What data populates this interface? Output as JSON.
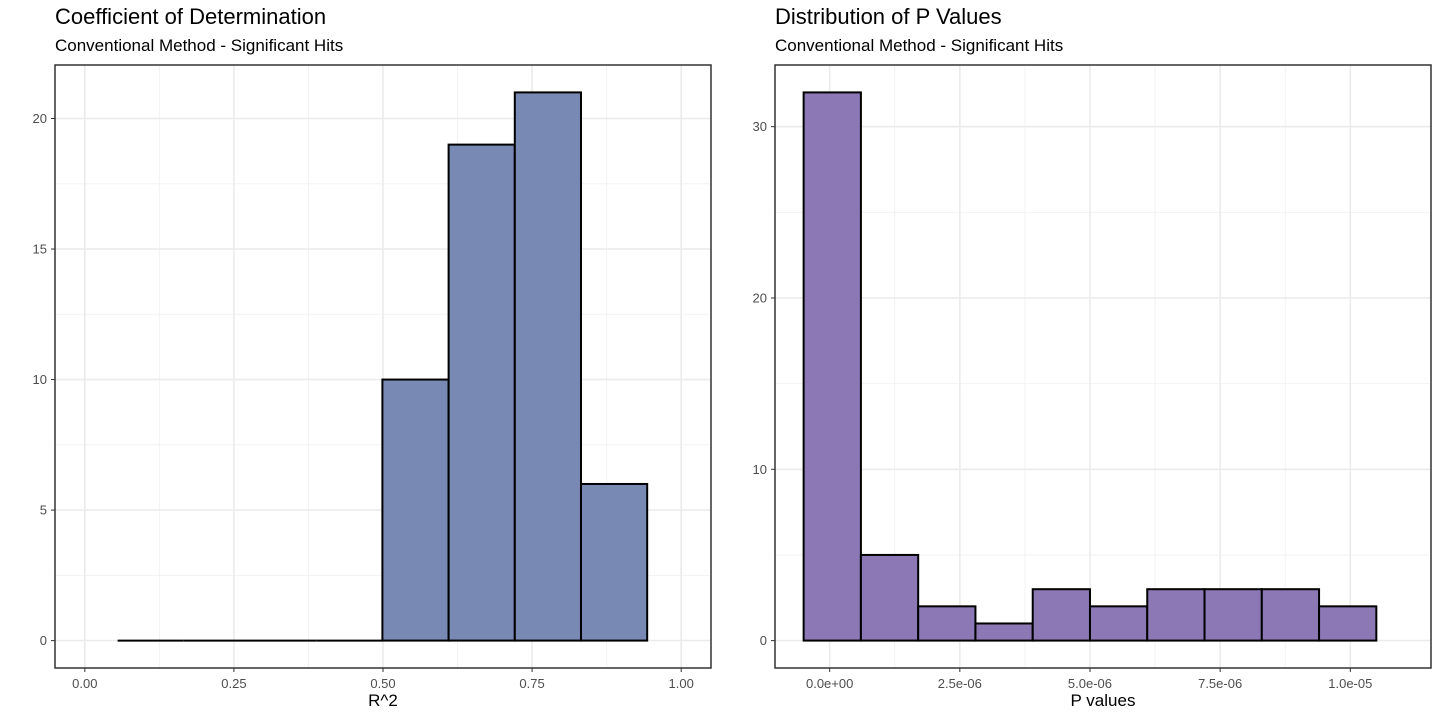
{
  "colors": {
    "left_fill": "#7889b4",
    "right_fill": "#8b78b4",
    "bar_stroke": "#000000",
    "grid_major": "#ebebeb",
    "grid_minor": "#f2f2f2",
    "panel_border": "#333333",
    "tick_text": "#4d4d4d"
  },
  "chart_data": [
    {
      "type": "bar",
      "subtype": "histogram",
      "title": "Coefficient of Determination",
      "subtitle": "Conventional Method - Significant Hits",
      "xlabel": "R^2",
      "ylabel": "",
      "xlim": [
        -0.05,
        1.05
      ],
      "ylim": [
        -1.05,
        22.05
      ],
      "x_ticks": [
        0,
        0.25,
        0.5,
        0.75,
        1
      ],
      "x_tick_labels": [
        "0.00",
        "0.25",
        "0.50",
        "0.75",
        "1.00"
      ],
      "y_ticks": [
        0,
        5,
        10,
        15,
        20
      ],
      "y_tick_labels": [
        "0",
        "5",
        "10",
        "15",
        "20"
      ],
      "bins": [
        {
          "x0": 0.055,
          "x1": 0.166,
          "count": 0
        },
        {
          "x0": 0.166,
          "x1": 0.277,
          "count": 0
        },
        {
          "x0": 0.277,
          "x1": 0.388,
          "count": 0
        },
        {
          "x0": 0.388,
          "x1": 0.499,
          "count": 0
        },
        {
          "x0": 0.499,
          "x1": 0.61,
          "count": 10
        },
        {
          "x0": 0.61,
          "x1": 0.721,
          "count": 19
        },
        {
          "x0": 0.721,
          "x1": 0.832,
          "count": 21
        },
        {
          "x0": 0.832,
          "x1": 0.943,
          "count": 6
        }
      ],
      "grid": true,
      "fill_color_key": "left_fill"
    },
    {
      "type": "bar",
      "subtype": "histogram",
      "title": "Distribution of P Values",
      "subtitle": "Conventional Method - Significant Hits",
      "xlabel": "P values",
      "ylabel": "",
      "xlim": [
        -1.05e-06,
        1.155e-05
      ],
      "ylim": [
        -1.6,
        33.6
      ],
      "x_ticks": [
        0,
        2.5e-06,
        5e-06,
        7.5e-06,
        1e-05
      ],
      "x_tick_labels": [
        "0.0e+00",
        "2.5e-06",
        "5.0e-06",
        "7.5e-06",
        "1.0e-05"
      ],
      "y_ticks": [
        0,
        10,
        20,
        30
      ],
      "y_tick_labels": [
        "0",
        "10",
        "20",
        "30"
      ],
      "bins": [
        {
          "x0": -5e-07,
          "x1": 6e-07,
          "count": 32
        },
        {
          "x0": 6e-07,
          "x1": 1.7e-06,
          "count": 5
        },
        {
          "x0": 1.7e-06,
          "x1": 2.8e-06,
          "count": 2
        },
        {
          "x0": 2.8e-06,
          "x1": 3.9e-06,
          "count": 1
        },
        {
          "x0": 3.9e-06,
          "x1": 5e-06,
          "count": 3
        },
        {
          "x0": 5e-06,
          "x1": 6.1e-06,
          "count": 2
        },
        {
          "x0": 6.1e-06,
          "x1": 7.2e-06,
          "count": 3
        },
        {
          "x0": 7.2e-06,
          "x1": 8.3e-06,
          "count": 3
        },
        {
          "x0": 8.3e-06,
          "x1": 9.4e-06,
          "count": 3
        },
        {
          "x0": 9.4e-06,
          "x1": 1.05e-05,
          "count": 2
        }
      ],
      "grid": true,
      "fill_color_key": "right_fill"
    }
  ]
}
